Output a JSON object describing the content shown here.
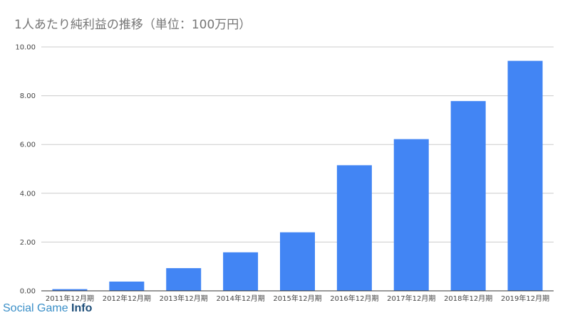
{
  "chart_data": {
    "type": "bar",
    "title": "1人あたり純利益の推移（単位：100万円）",
    "categories": [
      "2011年12月期",
      "2012年12月期",
      "2013年12月期",
      "2014年12月期",
      "2015年12月期",
      "2016年12月期",
      "2017年12月期",
      "2018年12月期",
      "2019年12月期"
    ],
    "values": [
      0.07,
      0.38,
      0.93,
      1.58,
      2.4,
      5.15,
      6.22,
      7.78,
      9.43
    ],
    "ylim": [
      0,
      10
    ],
    "yticks": [
      "0.00",
      "2.00",
      "4.00",
      "6.00",
      "8.00",
      "10.00"
    ],
    "xlabel": "",
    "ylabel": "",
    "grid": true,
    "bar_color": "#4285f4",
    "grid_color": "#cccccc",
    "axis_color": "#333333"
  },
  "watermark": {
    "part1": "Social Game ",
    "part2": "Info",
    "color1": "#3a8fc8",
    "color2": "#1f4f7a"
  }
}
